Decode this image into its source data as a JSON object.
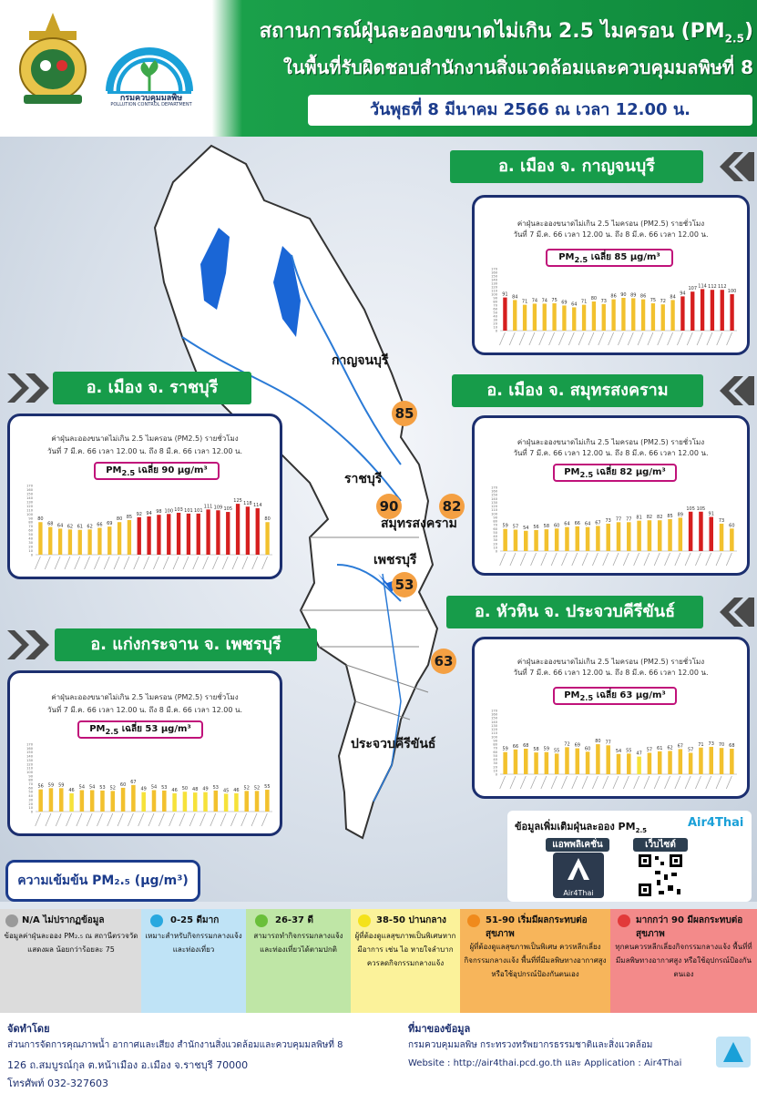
{
  "header": {
    "title_line1": "สถานการณ์ฝุ่นละอองขนาดไม่เกิน 2.5 ไมครอน (PM",
    "title_line1_sub": "2.5",
    "title_line1_end": ")",
    "title_line2": "ในพื้นที่รับผิดชอบสำนักงานสิ่งแวดล้อมและควบคุมมลพิษที่ 8",
    "date": "วันพุธที่  8 มีนาคม  2566 ณ เวลา 12.00 น.",
    "pcd_name": "กรมควบคุมมลพิษ",
    "pcd_sub": "POLLUTION CONTROL DEPARTMENT"
  },
  "map": {
    "labels": {
      "kanchanaburi": "กาญจนบุรี",
      "ratchaburi": "ราชบุรี",
      "samut": "สมุทรสงคราม",
      "phetchaburi": "เพชรบุรี",
      "prachuap": "ประจวบคีรีขันธ์"
    },
    "values": {
      "kanchanaburi": "85",
      "ratchaburi": "90",
      "samut": "82",
      "phetchaburi": "53",
      "prachuap": "63"
    }
  },
  "stations": [
    {
      "banner": "อ. เมือง จ. กาญจนบุรี",
      "title": "ค่าฝุ่นละอองขนาดไม่เกิน 2.5 ไมครอน (PM2.5) รายชั่วโมง",
      "sub": "วันที่ 7 มี.ค. 66 เวลา 12.00 น. ถึง 8 มี.ค. 66 เวลา 12.00 น.",
      "avg": "เฉลี่ย 85 µg/m³",
      "values": [
        91,
        84,
        71,
        74,
        74,
        75,
        69,
        64,
        71,
        80,
        73,
        86,
        90,
        89,
        86,
        75,
        72,
        84,
        94,
        107,
        114,
        112,
        112,
        100
      ]
    },
    {
      "banner": "อ. เมือง จ. ราชบุรี",
      "title": "ค่าฝุ่นละอองขนาดไม่เกิน 2.5 ไมครอน (PM2.5) รายชั่วโมง",
      "sub": "วันที่ 7 มี.ค. 66 เวลา 12.00 น. ถึง 8 มี.ค. 66 เวลา 12.00 น.",
      "avg": "เฉลี่ย 90 µg/m³",
      "values": [
        80,
        68,
        64,
        62,
        61,
        62,
        66,
        69,
        80,
        85,
        92,
        94,
        98,
        100,
        103,
        101,
        101,
        111,
        109,
        105,
        125,
        118,
        114,
        80
      ]
    },
    {
      "banner": "อ. เมือง จ. สมุทรสงคราม",
      "title": "ค่าฝุ่นละอองขนาดไม่เกิน 2.5 ไมครอน (PM2.5) รายชั่วโมง",
      "sub": "วันที่ 7 มี.ค. 66 เวลา 12.00 น. ถึง 8 มี.ค. 66 เวลา 12.00 น.",
      "avg": "เฉลี่ย 82 µg/m³",
      "values": [
        59,
        57,
        54,
        56,
        58,
        60,
        64,
        66,
        64,
        67,
        73,
        77,
        77,
        81,
        82,
        82,
        85,
        89,
        105,
        105,
        91,
        73,
        60
      ]
    },
    {
      "banner": "อ. หัวหิน จ. ประจวบคีรีขันธ์",
      "title": "ค่าฝุ่นละอองขนาดไม่เกิน 2.5 ไมครอน (PM2.5) รายชั่วโมง",
      "sub": "วันที่ 7 มี.ค. 66 เวลา 12.00 น. ถึง 8 มี.ค. 66 เวลา 12.00 น.",
      "avg": "เฉลี่ย 63 µg/m³",
      "values": [
        59,
        66,
        68,
        58,
        59,
        55,
        72,
        69,
        60,
        80,
        77,
        54,
        55,
        47,
        57,
        61,
        62,
        67,
        57,
        71,
        73,
        70,
        68
      ]
    },
    {
      "banner": "อ. แก่งกระจาน จ. เพชรบุรี",
      "title": "ค่าฝุ่นละอองขนาดไม่เกิน 2.5 ไมครอน (PM2.5) รายชั่วโมง",
      "sub": "วันที่ 7 มี.ค. 66 เวลา 12.00 น. ถึง 8 มี.ค. 66 เวลา 12.00 น.",
      "avg": "เฉลี่ย 53 µg/m³",
      "values": [
        56,
        59,
        59,
        46,
        54,
        54,
        53,
        52,
        60,
        67,
        49,
        54,
        53,
        46,
        50,
        48,
        49,
        53,
        45,
        46,
        52,
        52,
        55
      ]
    }
  ],
  "chart_yticks": [
    "0",
    "10",
    "20",
    "30",
    "40",
    "50",
    "60",
    "70",
    "80",
    "90",
    "100",
    "110",
    "120",
    "130",
    "140",
    "150",
    "160",
    "170"
  ],
  "app": {
    "title": "ข้อมูลเพิ่มเติมฝุ่นละออง PM",
    "sub": "2.5",
    "brand": "Air4Thai",
    "app_label": "แอพพลิเคชั่น",
    "web_label": "เว็บไซต์"
  },
  "concentration": "ความเข้มข้น PM₂.₅ (µg/m³)",
  "legend": [
    {
      "head": "N/A ไม่ปรากฏข้อมูล",
      "body": "ข้อมูลค่าฝุ่นละออง PM₂.₅ ณ สถานีตรวจวัดแสดงผล น้อยกว่าร้อยละ 75",
      "bg": "#dcdcdc",
      "dot": "#9a9a9a"
    },
    {
      "head": "0-25 ดีมาก",
      "body": "เหมาะสำหรับกิจกรรมกลางแจ้ง และท่องเที่ยว",
      "bg": "#bfe3f6",
      "dot": "#29a8df"
    },
    {
      "head": "26-37 ดี",
      "body": "สามารถทำกิจกรรมกลางแจ้ง และท่องเที่ยวได้ตามปกติ",
      "bg": "#bfe6a6",
      "dot": "#6abf3a"
    },
    {
      "head": "38-50 ปานกลาง",
      "body": "ผู้ที่ต้องดูแลสุขภาพเป็นพิเศษหากมีอาการ เช่น ไอ หายใจลำบาก ควรลดกิจกรรมกลางแจ้ง",
      "bg": "#fbf29a",
      "dot": "#f4e21a"
    },
    {
      "head": "51-90 เริ่มมีผลกระทบต่อสุขภาพ",
      "body": "ผู้ที่ต้องดูแลสุขภาพเป็นพิเศษ ควรหลีกเลี่ยงกิจกรรมกลางแจ้ง พื้นที่ที่มีมลพิษทางอากาศสูง หรือใช้อุปกรณ์ป้องกันตนเอง",
      "bg": "#f7b55b",
      "dot": "#f08a1c"
    },
    {
      "head": "มากกว่า 90 มีผลกระทบต่อสุขภาพ",
      "body": "ทุกคนควรหลีกเลี่ยงกิจกรรมกลางแจ้ง พื้นที่ที่มีมลพิษทางอากาศสูง หรือใช้อุปกรณ์ป้องกันตนเอง",
      "bg": "#f38a8a",
      "dot": "#e23a3a"
    }
  ],
  "footer": {
    "left_head": "จัดทำโดย",
    "left_l1": "ส่วนการจัดการคุณภาพน้ำ อากาศและเสียง สำนักงานสิ่งแวดล้อมและควบคุมมลพิษที่ 8",
    "left_l2": "126 ถ.สมบูรณ์กุล ต.หน้าเมือง อ.เมือง จ.ราชบุรี 70000",
    "left_l3": "โทรศัพท์ 032-327603",
    "right_head": "ที่มาของข้อมูล",
    "right_l1": "กรมควบคุมมลพิษ กระทรวงทรัพยากรธรรมชาติและสิ่งแวดล้อม",
    "right_l2": "Website : http://air4thai.pcd.go.th และ Application : Air4Thai"
  }
}
